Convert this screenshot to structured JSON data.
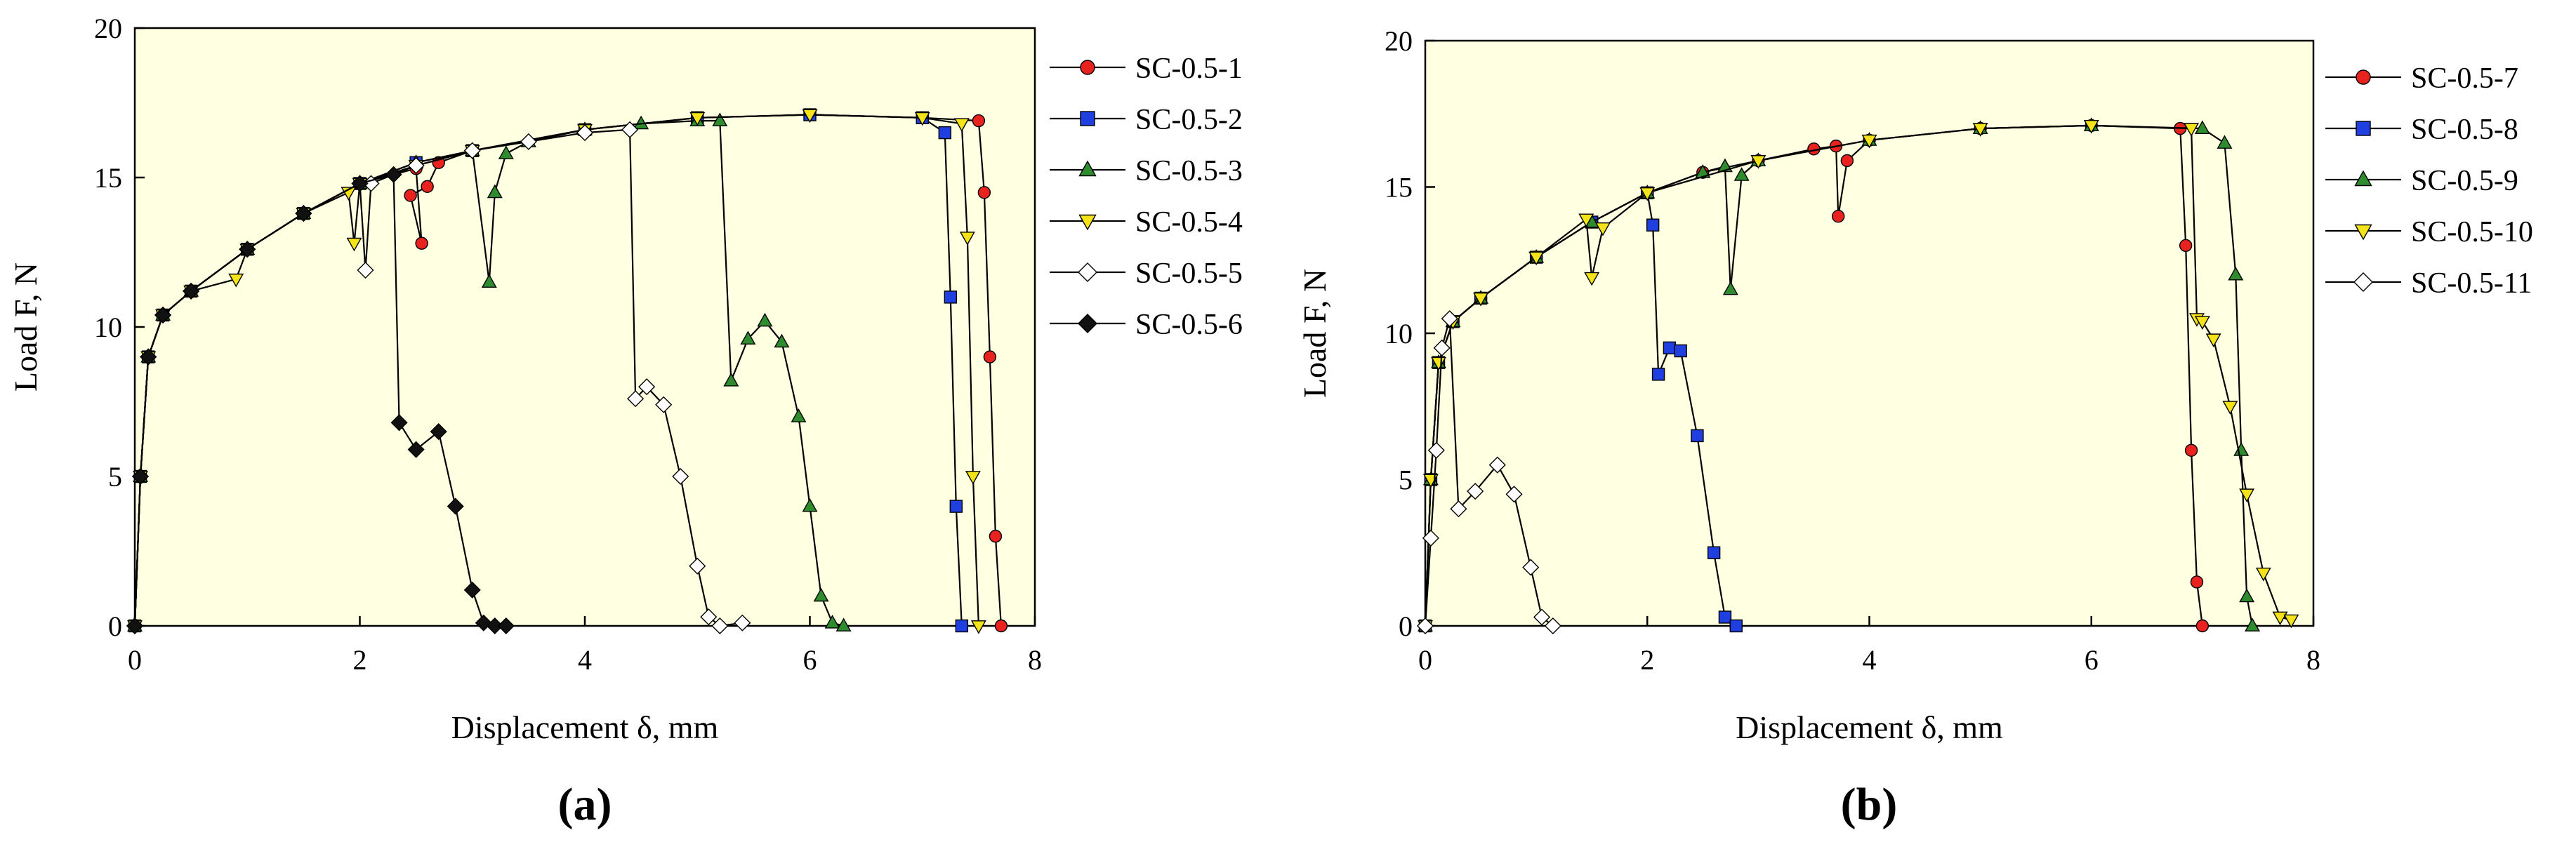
{
  "chart_data": [
    {
      "type": "line",
      "panel_label": "(a)",
      "xlabel": "Displacement δ, mm",
      "ylabel": "Load F, N",
      "xlim": [
        0,
        8
      ],
      "ylim": [
        0,
        20
      ],
      "xticks": [
        "0",
        "2",
        "4",
        "6",
        "8"
      ],
      "yticks": [
        "0",
        "5",
        "10",
        "15",
        "20"
      ],
      "plot_background": "#FFFFE1",
      "grid": false,
      "legend_position": "right",
      "series": [
        {
          "name": "SC-0.5-1",
          "marker": "circle",
          "color": "#E8231F",
          "x": [
            0,
            0.05,
            0.12,
            0.25,
            0.5,
            1.0,
            1.5,
            2.0,
            2.5,
            2.55,
            2.45,
            2.6,
            2.7,
            3.0,
            4.0,
            5.0,
            6.0,
            7.0,
            7.5,
            7.55,
            7.6,
            7.65,
            7.7
          ],
          "y": [
            0,
            5,
            9,
            10.4,
            11.2,
            12.6,
            13.8,
            14.8,
            15.3,
            12.8,
            14.4,
            14.7,
            15.5,
            15.9,
            16.6,
            17.0,
            17.1,
            17.0,
            16.9,
            14.5,
            9,
            3,
            0
          ]
        },
        {
          "name": "SC-0.5-2",
          "marker": "square",
          "color": "#1F3FE0",
          "x": [
            0,
            0.05,
            0.12,
            0.25,
            0.5,
            1.0,
            1.5,
            2.0,
            2.5,
            3.0,
            4.0,
            5.0,
            6.0,
            7.0,
            7.2,
            7.25,
            7.3,
            7.35
          ],
          "y": [
            0,
            5,
            9,
            10.4,
            11.2,
            12.6,
            13.8,
            14.8,
            15.5,
            15.9,
            16.6,
            17.0,
            17.1,
            17.0,
            16.5,
            11,
            4,
            0
          ]
        },
        {
          "name": "SC-0.5-3",
          "marker": "triangle-up",
          "color": "#2E8B2E",
          "x": [
            0,
            0.05,
            0.12,
            0.25,
            0.5,
            1.0,
            1.5,
            2.0,
            2.5,
            3.0,
            3.15,
            3.2,
            3.3,
            3.5,
            4.0,
            4.5,
            5.0,
            5.2,
            5.3,
            5.45,
            5.6,
            5.75,
            5.9,
            6.0,
            6.1,
            6.2,
            6.3
          ],
          "y": [
            0,
            5,
            9,
            10.4,
            11.2,
            12.6,
            13.8,
            14.8,
            15.5,
            15.9,
            11.5,
            14.5,
            15.8,
            16.2,
            16.6,
            16.8,
            16.9,
            16.9,
            8.2,
            9.6,
            10.2,
            9.5,
            7,
            4,
            1,
            0.1,
            0
          ]
        },
        {
          "name": "SC-0.5-4",
          "marker": "triangle-down",
          "color": "#F5E31A",
          "x": [
            0,
            0.05,
            0.12,
            0.25,
            0.5,
            0.9,
            1.0,
            1.5,
            1.9,
            1.95,
            2.0,
            2.5,
            3.0,
            4.0,
            5.0,
            6.0,
            7.0,
            7.35,
            7.4,
            7.45,
            7.5
          ],
          "y": [
            0,
            5,
            9,
            10.4,
            11.2,
            11.6,
            12.6,
            13.8,
            14.5,
            12.8,
            14.8,
            15.4,
            15.9,
            16.6,
            17.0,
            17.1,
            17.0,
            16.8,
            13,
            5,
            0
          ]
        },
        {
          "name": "SC-0.5-5",
          "marker": "diamond-open",
          "color": "#FFFFFF",
          "x": [
            0,
            0.05,
            0.12,
            0.25,
            0.5,
            1.0,
            1.5,
            2.0,
            2.05,
            2.1,
            2.5,
            3.0,
            3.5,
            4.0,
            4.4,
            4.45,
            4.55,
            4.7,
            4.85,
            5.0,
            5.1,
            5.2,
            5.4
          ],
          "y": [
            0,
            5,
            9,
            10.4,
            11.2,
            12.6,
            13.8,
            14.8,
            11.9,
            14.8,
            15.4,
            15.9,
            16.2,
            16.5,
            16.6,
            7.6,
            8.0,
            7.4,
            5,
            2,
            0.3,
            0,
            0.1
          ]
        },
        {
          "name": "SC-0.5-6",
          "marker": "diamond",
          "color": "#111111",
          "x": [
            0,
            0.05,
            0.12,
            0.25,
            0.5,
            1.0,
            1.5,
            2.0,
            2.3,
            2.35,
            2.5,
            2.7,
            2.85,
            3.0,
            3.1,
            3.2,
            3.3
          ],
          "y": [
            0,
            5,
            9,
            10.4,
            11.2,
            12.6,
            13.8,
            14.8,
            15.1,
            6.8,
            5.9,
            6.5,
            4,
            1.2,
            0.1,
            0,
            0
          ]
        }
      ]
    },
    {
      "type": "line",
      "panel_label": "(b)",
      "xlabel": "Displacement δ, mm",
      "ylabel": "Load F, N",
      "xlim": [
        0,
        8
      ],
      "ylim": [
        0,
        20
      ],
      "xticks": [
        "0",
        "2",
        "4",
        "6",
        "8"
      ],
      "yticks": [
        "0",
        "5",
        "10",
        "15",
        "20"
      ],
      "plot_background": "#FFFFE1",
      "grid": false,
      "legend_position": "right",
      "series": [
        {
          "name": "SC-0.5-7",
          "marker": "circle",
          "color": "#E8231F",
          "x": [
            0,
            0.05,
            0.12,
            0.25,
            0.5,
            1.0,
            1.5,
            2.0,
            2.5,
            3.0,
            3.5,
            3.7,
            3.72,
            3.8,
            4.0,
            5.0,
            6.0,
            6.8,
            6.85,
            6.9,
            6.95,
            7.0
          ],
          "y": [
            0,
            5,
            9,
            10.4,
            11.2,
            12.6,
            13.8,
            14.8,
            15.5,
            15.9,
            16.3,
            16.4,
            14.0,
            15.9,
            16.6,
            17.0,
            17.1,
            17.0,
            13,
            6,
            1.5,
            0
          ]
        },
        {
          "name": "SC-0.5-8",
          "marker": "square",
          "color": "#1F3FE0",
          "x": [
            0,
            0.05,
            0.12,
            0.25,
            0.5,
            1.0,
            1.5,
            2.0,
            2.05,
            2.1,
            2.2,
            2.3,
            2.45,
            2.6,
            2.7,
            2.8
          ],
          "y": [
            0,
            5,
            9,
            10.4,
            11.2,
            12.6,
            13.8,
            14.8,
            13.7,
            8.6,
            9.5,
            9.4,
            6.5,
            2.5,
            0.3,
            0
          ]
        },
        {
          "name": "SC-0.5-9",
          "marker": "triangle-up",
          "color": "#2E8B2E",
          "x": [
            0,
            0.05,
            0.12,
            0.25,
            0.5,
            1.0,
            1.5,
            2.0,
            2.5,
            2.7,
            2.75,
            2.85,
            3.0,
            4.0,
            5.0,
            6.0,
            7.0,
            7.2,
            7.3,
            7.35,
            7.4,
            7.45
          ],
          "y": [
            0,
            5,
            9,
            10.4,
            11.2,
            12.6,
            13.8,
            14.8,
            15.5,
            15.7,
            11.5,
            15.4,
            15.9,
            16.6,
            17.0,
            17.1,
            17.0,
            16.5,
            12,
            6,
            1,
            0
          ]
        },
        {
          "name": "SC-0.5-10",
          "marker": "triangle-down",
          "color": "#F5E31A",
          "x": [
            0,
            0.05,
            0.12,
            0.25,
            0.5,
            1.0,
            1.45,
            1.5,
            1.6,
            2.0,
            3.0,
            4.0,
            5.0,
            6.0,
            6.9,
            6.95,
            7.0,
            7.1,
            7.25,
            7.4,
            7.55,
            7.7,
            7.8
          ],
          "y": [
            0,
            5,
            9,
            10.4,
            11.2,
            12.6,
            13.9,
            11.9,
            13.6,
            14.8,
            15.9,
            16.6,
            17.0,
            17.1,
            17.0,
            10.5,
            10.4,
            9.8,
            7.5,
            4.5,
            1.8,
            0.3,
            0.2
          ]
        },
        {
          "name": "SC-0.5-11",
          "marker": "diamond-open",
          "color": "#FFFFFF",
          "x": [
            0,
            0.05,
            0.1,
            0.15,
            0.22,
            0.3,
            0.45,
            0.65,
            0.8,
            0.95,
            1.05,
            1.15
          ],
          "y": [
            0,
            3,
            6,
            9.5,
            10.5,
            4.0,
            4.6,
            5.5,
            4.5,
            2.0,
            0.3,
            0
          ]
        }
      ]
    }
  ]
}
